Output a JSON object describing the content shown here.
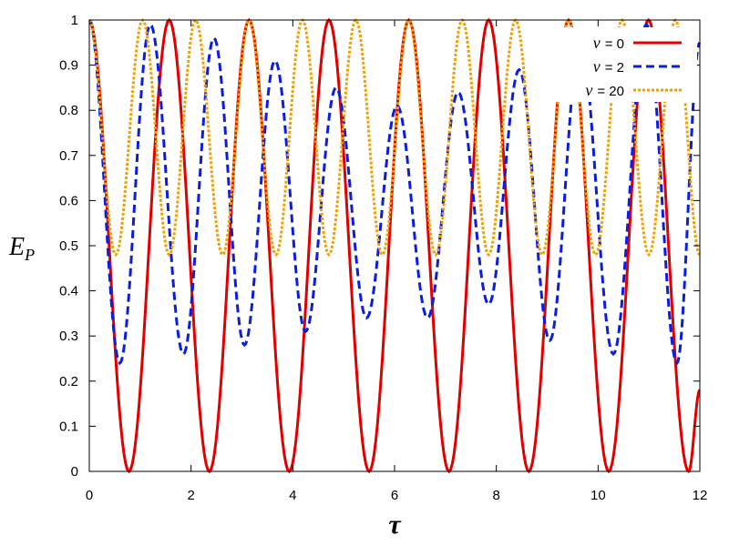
{
  "chart_data": {
    "type": "line",
    "xlabel": "τ",
    "ylabel": "E",
    "ylabel_sub": "P",
    "xlim": [
      0,
      12
    ],
    "ylim": [
      0,
      1
    ],
    "x_ticks": [
      "0",
      "2",
      "4",
      "6",
      "8",
      "10",
      "12"
    ],
    "y_ticks": [
      "0",
      "0.1",
      "0.2",
      "0.3",
      "0.4",
      "0.5",
      "0.6",
      "0.7",
      "0.8",
      "0.9",
      "1"
    ],
    "grid": false,
    "legend_position": "top-right",
    "series": [
      {
        "name": "ν = 0",
        "legend_var": "ν",
        "legend_eq": "= 0",
        "color": "#e00000",
        "style": "solid",
        "x": [
          0,
          0.78,
          1.57,
          2.36,
          3.14,
          3.93,
          4.71,
          5.5,
          6.28,
          7.07,
          7.85,
          8.64,
          9.42,
          10.21,
          10.99,
          11.78,
          12
        ],
        "values": [
          1,
          0,
          1,
          0,
          1,
          0,
          1,
          0,
          1,
          0,
          1,
          0,
          1,
          0,
          1,
          0,
          0.18
        ]
      },
      {
        "name": "ν = 2",
        "legend_var": "ν",
        "legend_eq": "= 2",
        "color": "#0a1ee0",
        "style": "dashed",
        "x": [
          0,
          0.6,
          1.2,
          1.85,
          2.45,
          3.05,
          3.65,
          4.25,
          4.85,
          5.45,
          6.05,
          6.65,
          7.25,
          7.85,
          8.45,
          9.05,
          9.65,
          10.3,
          10.95,
          11.55,
          12
        ],
        "values": [
          1,
          0.24,
          0.99,
          0.26,
          0.96,
          0.28,
          0.91,
          0.31,
          0.85,
          0.34,
          0.81,
          0.34,
          0.84,
          0.37,
          0.89,
          0.29,
          0.95,
          0.26,
          0.99,
          0.24,
          0.95
        ]
      },
      {
        "name": "ν = 20",
        "legend_var": "ν",
        "legend_eq": "= 20",
        "color": "#f0a000",
        "style": "dotted",
        "x": [
          0,
          0.52,
          1.05,
          1.57,
          2.09,
          2.62,
          3.14,
          3.67,
          4.19,
          4.71,
          5.24,
          5.76,
          6.28,
          6.81,
          7.33,
          7.85,
          8.38,
          8.9,
          9.42,
          9.95,
          10.47,
          11.0,
          11.52,
          12
        ],
        "values": [
          1,
          0.48,
          1,
          0.48,
          1,
          0.48,
          1,
          0.48,
          1,
          0.48,
          1,
          0.48,
          1,
          0.48,
          1,
          0.48,
          1,
          0.48,
          1,
          0.48,
          1,
          0.48,
          1,
          0.48
        ]
      }
    ]
  }
}
